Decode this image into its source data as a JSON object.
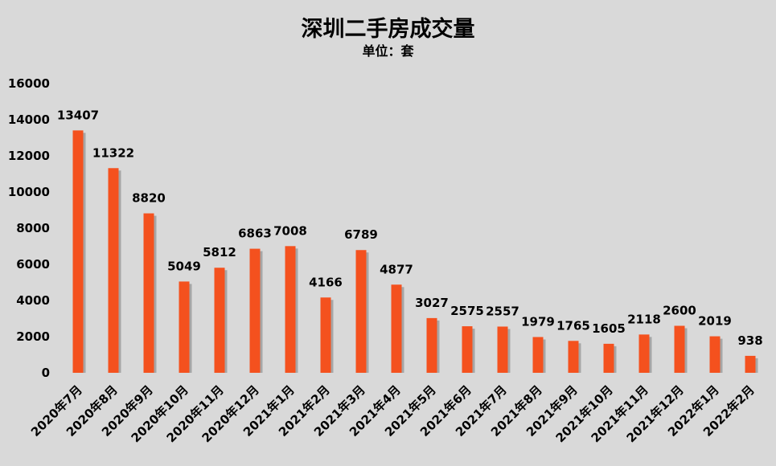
{
  "chart_data": {
    "type": "bar",
    "title": "深圳二手房成交量",
    "subtitle": "单位：套",
    "xlabel": "",
    "ylabel": "",
    "ylim": [
      0,
      16000
    ],
    "yticks": [
      0,
      2000,
      4000,
      6000,
      8000,
      10000,
      12000,
      14000,
      16000
    ],
    "grid": false,
    "bar_color": "#f4511e",
    "bar_shadow_color": "#a6a6a6",
    "categories": [
      "2020年7月",
      "2020年8月",
      "2020年9月",
      "2020年10月",
      "2020年11月",
      "2020年12月",
      "2021年1月",
      "2021年2月",
      "2021年3月",
      "2021年4月",
      "2021年5月",
      "2021年6月",
      "2021年7月",
      "2021年8月",
      "2021年9月",
      "2021年10月",
      "2021年11月",
      "2021年12月",
      "2022年1月",
      "2022年2月"
    ],
    "values": [
      13407,
      11322,
      8820,
      5049,
      5812,
      6863,
      7008,
      4166,
      6789,
      4877,
      3027,
      2575,
      2557,
      1979,
      1765,
      1605,
      2118,
      2600,
      2019,
      938
    ]
  }
}
